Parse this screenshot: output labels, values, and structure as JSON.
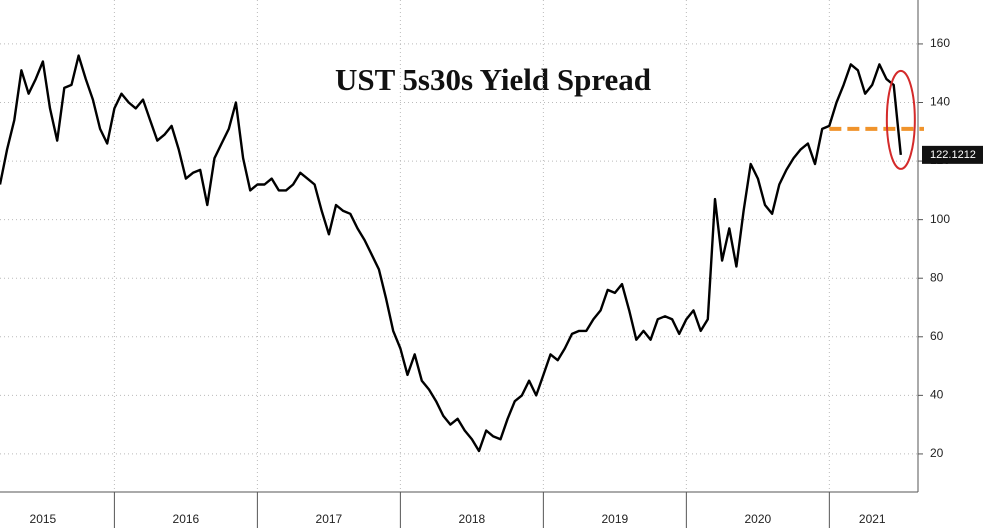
{
  "chart_data": {
    "type": "line",
    "title": "UST 5s30s Yield Spread",
    "x": [
      2015.2,
      2015.25,
      2015.3,
      2015.35,
      2015.4,
      2015.45,
      2015.5,
      2015.55,
      2015.6,
      2015.65,
      2015.7,
      2015.75,
      2015.8,
      2015.85,
      2015.9,
      2015.95,
      2016.0,
      2016.05,
      2016.1,
      2016.15,
      2016.2,
      2016.25,
      2016.3,
      2016.35,
      2016.4,
      2016.45,
      2016.5,
      2016.55,
      2016.6,
      2016.65,
      2016.7,
      2016.75,
      2016.8,
      2016.85,
      2016.9,
      2016.95,
      2017.0,
      2017.05,
      2017.1,
      2017.15,
      2017.2,
      2017.25,
      2017.3,
      2017.35,
      2017.4,
      2017.45,
      2017.5,
      2017.55,
      2017.6,
      2017.65,
      2017.7,
      2017.75,
      2017.8,
      2017.85,
      2017.9,
      2017.95,
      2018.0,
      2018.05,
      2018.1,
      2018.15,
      2018.2,
      2018.25,
      2018.3,
      2018.35,
      2018.4,
      2018.45,
      2018.5,
      2018.55,
      2018.6,
      2018.65,
      2018.7,
      2018.75,
      2018.8,
      2018.85,
      2018.9,
      2018.95,
      2019.0,
      2019.05,
      2019.1,
      2019.15,
      2019.2,
      2019.25,
      2019.3,
      2019.35,
      2019.4,
      2019.45,
      2019.5,
      2019.55,
      2019.6,
      2019.65,
      2019.7,
      2019.75,
      2019.8,
      2019.85,
      2019.9,
      2019.95,
      2020.0,
      2020.05,
      2020.1,
      2020.15,
      2020.2,
      2020.25,
      2020.3,
      2020.35,
      2020.4,
      2020.45,
      2020.5,
      2020.55,
      2020.6,
      2020.65,
      2020.7,
      2020.75,
      2020.8,
      2020.85,
      2020.9,
      2020.95,
      2021.0,
      2021.05,
      2021.1,
      2021.15,
      2021.2,
      2021.25,
      2021.3,
      2021.35,
      2021.4,
      2021.45,
      2021.5
    ],
    "values": [
      112,
      124,
      134,
      151,
      143,
      148,
      154,
      138,
      127,
      145,
      146,
      156,
      148,
      141,
      131,
      126,
      138,
      143,
      140,
      138,
      141,
      134,
      127,
      129,
      132,
      124,
      114,
      116,
      117,
      105,
      121,
      126,
      131,
      140,
      121,
      110,
      112,
      112,
      114,
      110,
      110,
      112,
      116,
      114,
      112,
      103,
      95,
      105,
      103,
      102,
      97,
      93,
      88,
      83,
      73,
      62,
      56,
      47,
      54,
      45,
      42,
      38,
      33,
      30,
      32,
      28,
      25,
      21,
      28,
      26,
      25,
      32,
      38,
      40,
      45,
      40,
      47,
      54,
      52,
      56,
      61,
      62,
      62,
      66,
      69,
      76,
      75,
      78,
      69,
      59,
      62,
      59,
      66,
      67,
      66,
      61,
      66,
      69,
      62,
      66,
      107,
      86,
      97,
      84,
      103,
      119,
      114,
      105,
      102,
      112,
      117,
      121,
      124,
      126,
      119,
      131,
      132,
      140,
      146,
      153,
      151,
      143,
      146,
      153,
      148,
      146,
      122.1212
    ],
    "color": "#000000",
    "xlim": [
      2015.2,
      2021.62
    ],
    "xticks": [
      {
        "value": 2015.5,
        "label": "2015"
      },
      {
        "value": 2016.5,
        "label": "2016"
      },
      {
        "value": 2017.5,
        "label": "2017"
      },
      {
        "value": 2018.5,
        "label": "2018"
      },
      {
        "value": 2019.5,
        "label": "2019"
      },
      {
        "value": 2020.5,
        "label": "2020"
      },
      {
        "value": 2021.3,
        "label": "2021"
      }
    ],
    "ylim": [
      7,
      175
    ],
    "yticks": [
      20,
      40,
      60,
      80,
      100,
      120,
      140,
      160
    ],
    "grid": true,
    "reference_line": {
      "value": 131,
      "color": "#f0932b"
    }
  }
}
